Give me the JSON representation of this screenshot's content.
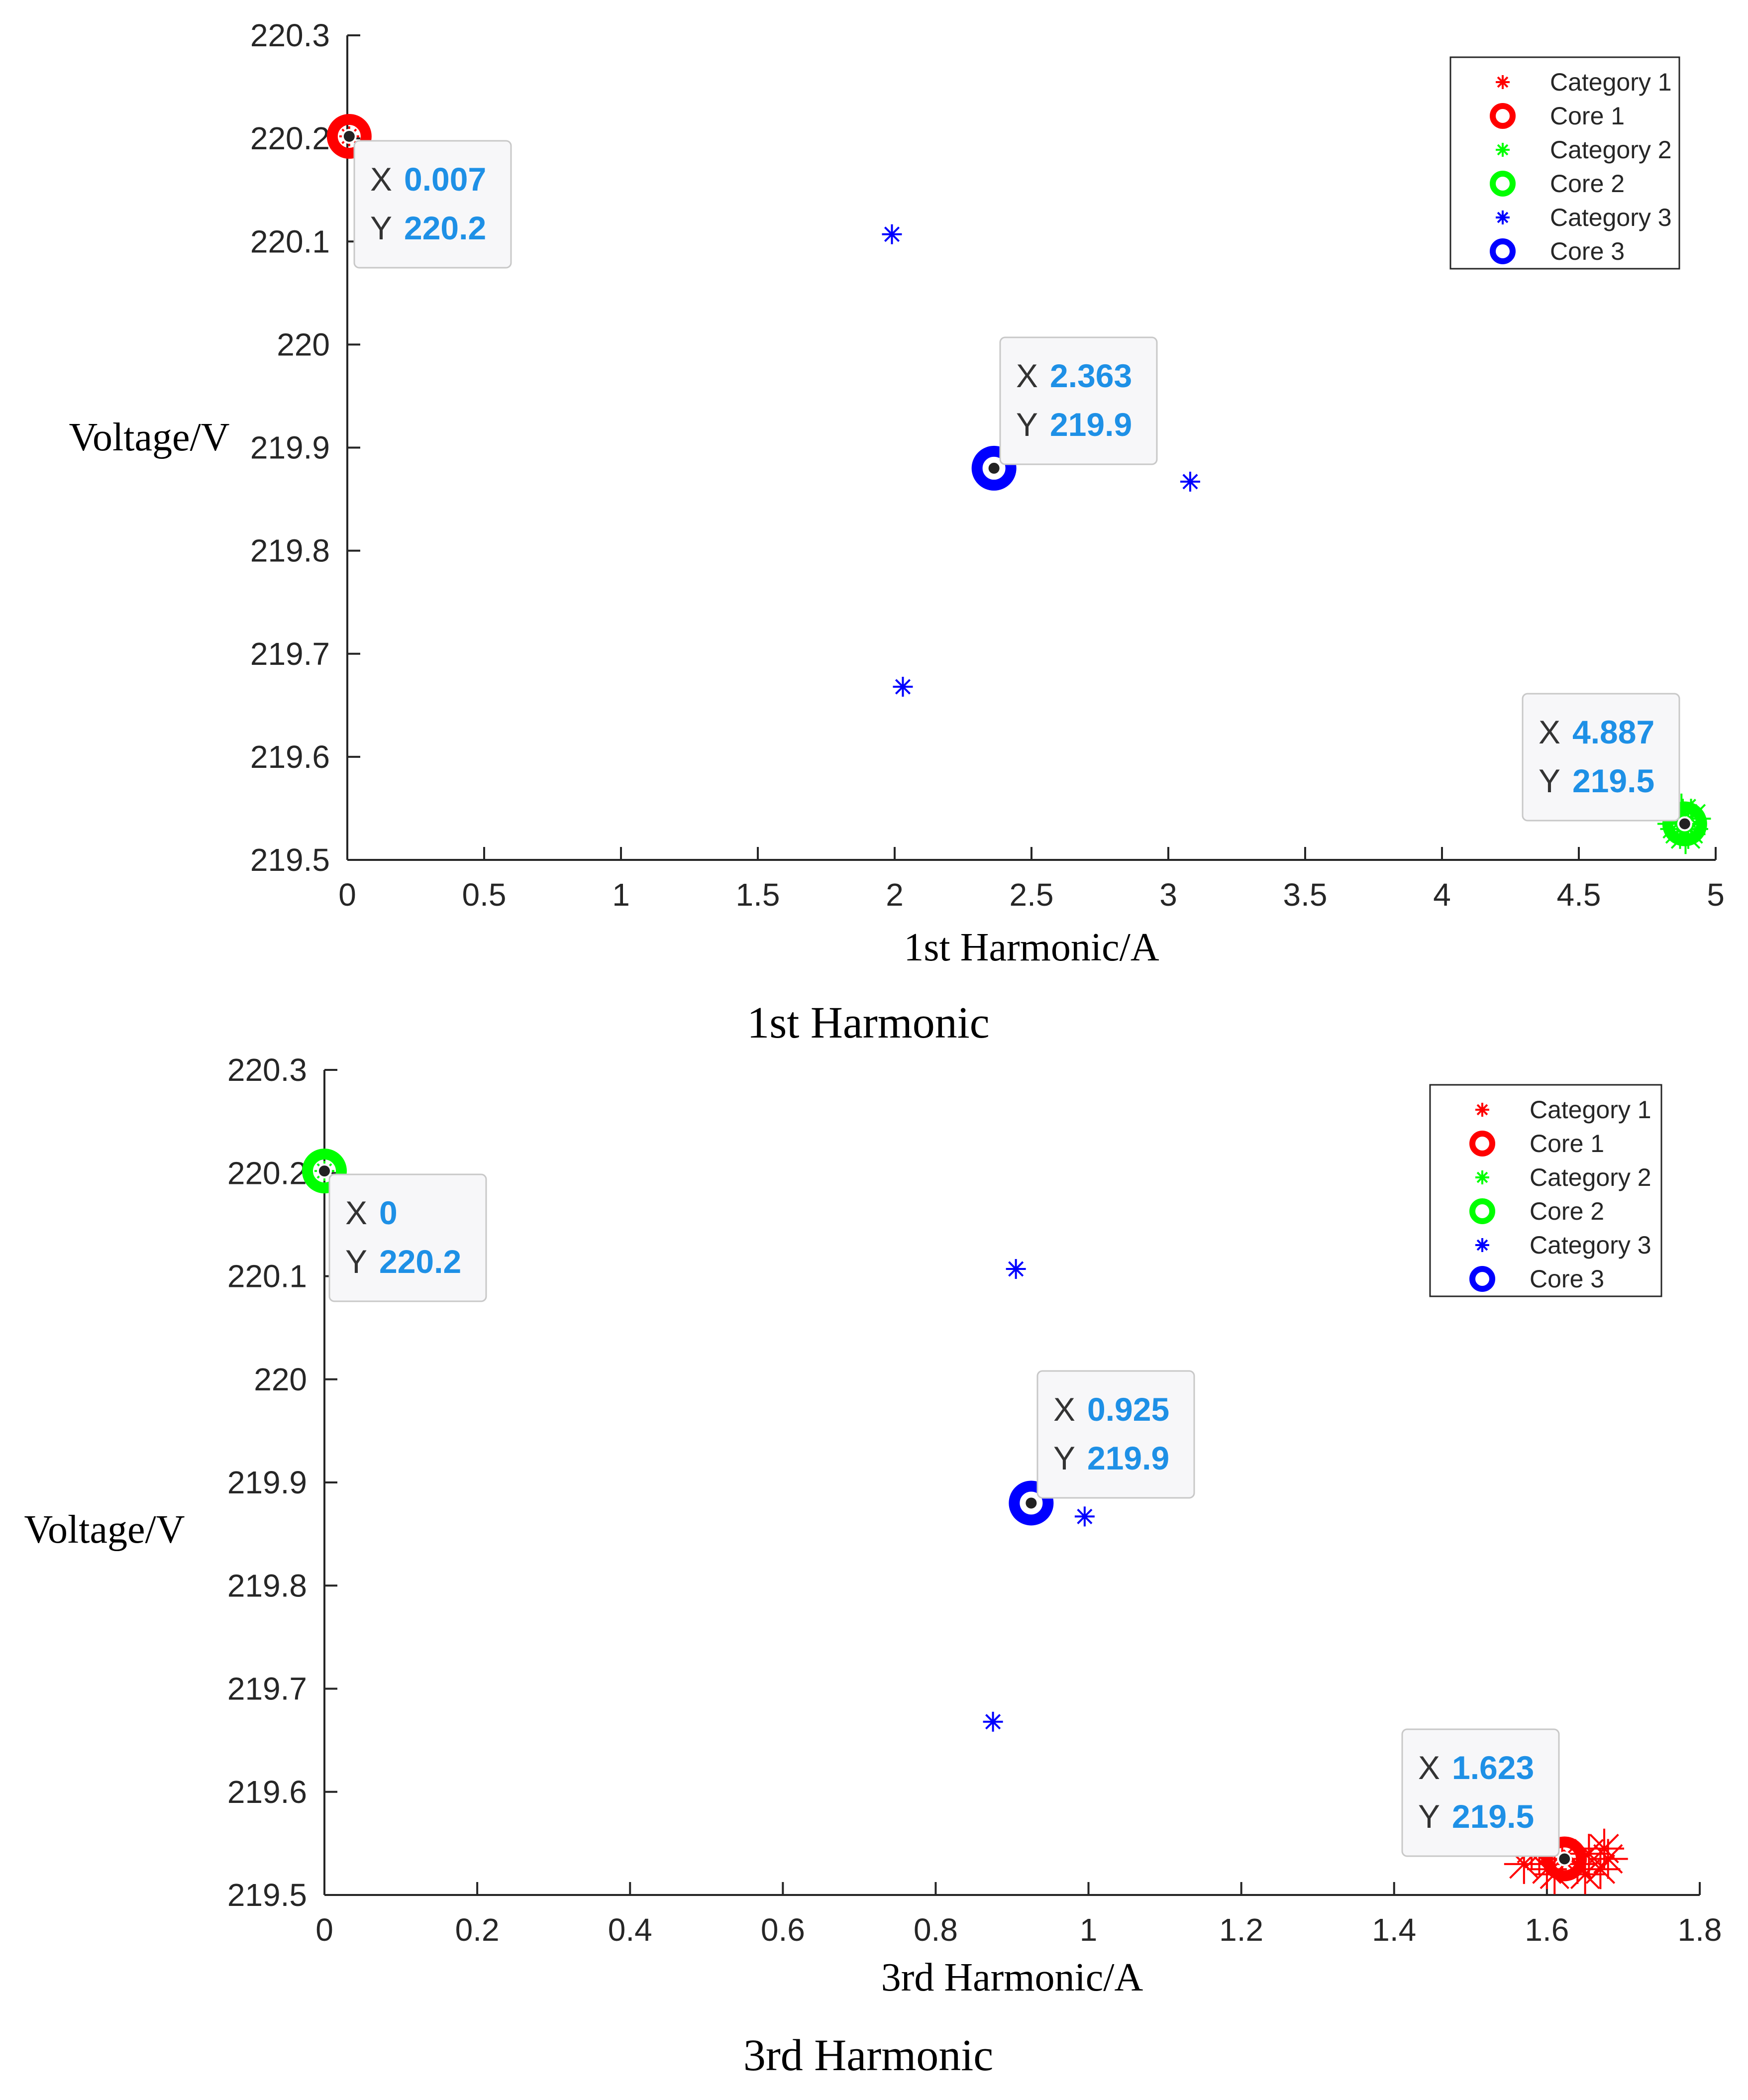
{
  "chart_data": [
    {
      "type": "scatter",
      "title": "1st Harmonic",
      "xlabel": "1st Harmonic/A",
      "ylabel": "Voltage/V",
      "xlim": [
        0,
        5
      ],
      "ylim": [
        219.5,
        220.3
      ],
      "x_ticks": [
        "0",
        "0.5",
        "1",
        "1.5",
        "2",
        "2.5",
        "3",
        "3.5",
        "4",
        "4.5",
        "5"
      ],
      "y_ticks": [
        "219.5",
        "219.6",
        "219.7",
        "219.8",
        "219.9",
        "220",
        "220.1",
        "220.2",
        "220.3"
      ],
      "legend": [
        "Category 1",
        "Core 1",
        "Category 2",
        "Core 2",
        "Category 3",
        "Core 3"
      ],
      "legend_position": "top-right",
      "series": [
        {
          "name": "Category 1",
          "color": "#ff0000",
          "marker": "asterisk",
          "points": [
            [
              0.007,
              220.202
            ]
          ]
        },
        {
          "name": "Category 2",
          "color": "#00ff00",
          "marker": "asterisk",
          "points": [
            [
              4.887,
              219.535
            ],
            [
              4.87,
              219.53
            ],
            [
              4.9,
              219.53
            ],
            [
              4.88,
              219.54
            ],
            [
              4.86,
              219.535
            ],
            [
              4.91,
              219.54
            ],
            [
              4.89,
              219.525
            ],
            [
              4.875,
              219.545
            ]
          ]
        },
        {
          "name": "Category 3",
          "color": "#0000ff",
          "marker": "asterisk",
          "points": [
            [
              1.99,
              220.107
            ],
            [
              3.08,
              219.867
            ],
            [
              2.03,
              219.668
            ]
          ]
        }
      ],
      "cores": [
        {
          "name": "Core 1",
          "color": "#ff0000",
          "x": 0.007,
          "y": 220.202
        },
        {
          "name": "Core 2",
          "color": "#00ff00",
          "x": 4.887,
          "y": 219.535
        },
        {
          "name": "Core 3",
          "color": "#0000ff",
          "x": 2.363,
          "y": 219.88
        }
      ],
      "datatips": [
        {
          "x_label": "X",
          "x_value": "0.007",
          "y_label": "Y",
          "y_value": "220.2",
          "x": 0.007,
          "y": 220.202
        },
        {
          "x_label": "X",
          "x_value": "2.363",
          "y_label": "Y",
          "y_value": "219.9",
          "x": 2.363,
          "y": 219.88
        },
        {
          "x_label": "X",
          "x_value": "4.887",
          "y_label": "Y",
          "y_value": "219.5",
          "x": 4.887,
          "y": 219.535
        }
      ]
    },
    {
      "type": "scatter",
      "title": "3rd Harmonic",
      "xlabel": "3rd Harmonic/A",
      "ylabel": "Voltage/V",
      "xlim": [
        0,
        1.8
      ],
      "ylim": [
        219.5,
        220.3
      ],
      "x_ticks": [
        "0",
        "0.2",
        "0.4",
        "0.6",
        "0.8",
        "1",
        "1.2",
        "1.4",
        "1.6",
        "1.8"
      ],
      "y_ticks": [
        "219.5",
        "219.6",
        "219.7",
        "219.8",
        "219.9",
        "220",
        "220.1",
        "220.2",
        "220.3"
      ],
      "legend": [
        "Category 1",
        "Core 1",
        "Category 2",
        "Core 2",
        "Category 3",
        "Core 3"
      ],
      "legend_position": "top-right",
      "series": [
        {
          "name": "Category 1",
          "color": "#ff0000",
          "marker": "asterisk",
          "points": [
            [
              1.57,
              219.53
            ],
            [
              1.59,
              219.54
            ],
            [
              1.6,
              219.525
            ],
            [
              1.62,
              219.535
            ],
            [
              1.64,
              219.53
            ],
            [
              1.655,
              219.54
            ],
            [
              1.67,
              219.525
            ],
            [
              1.68,
              219.535
            ],
            [
              1.58,
              219.545
            ],
            [
              1.65,
              219.52
            ],
            [
              1.61,
              219.52
            ],
            [
              1.675,
              219.545
            ]
          ]
        },
        {
          "name": "Category 2",
          "color": "#00ff00",
          "marker": "asterisk",
          "points": [
            [
              0,
              220.202
            ]
          ]
        },
        {
          "name": "Category 3",
          "color": "#0000ff",
          "marker": "asterisk",
          "points": [
            [
              0.905,
              220.107
            ],
            [
              0.995,
              219.867
            ],
            [
              0.875,
              219.668
            ]
          ]
        }
      ],
      "cores": [
        {
          "name": "Core 1",
          "color": "#ff0000",
          "x": 1.623,
          "y": 219.535
        },
        {
          "name": "Core 2",
          "color": "#00ff00",
          "x": 0,
          "y": 220.202
        },
        {
          "name": "Core 3",
          "color": "#0000ff",
          "x": 0.925,
          "y": 219.88
        }
      ],
      "datatips": [
        {
          "x_label": "X",
          "x_value": "0",
          "y_label": "Y",
          "y_value": "220.2",
          "x": 0,
          "y": 220.202
        },
        {
          "x_label": "X",
          "x_value": "0.925",
          "y_label": "Y",
          "y_value": "219.9",
          "x": 0.925,
          "y": 219.88
        },
        {
          "x_label": "X",
          "x_value": "1.623",
          "y_label": "Y",
          "y_value": "219.5",
          "x": 1.623,
          "y": 219.535
        }
      ]
    }
  ]
}
